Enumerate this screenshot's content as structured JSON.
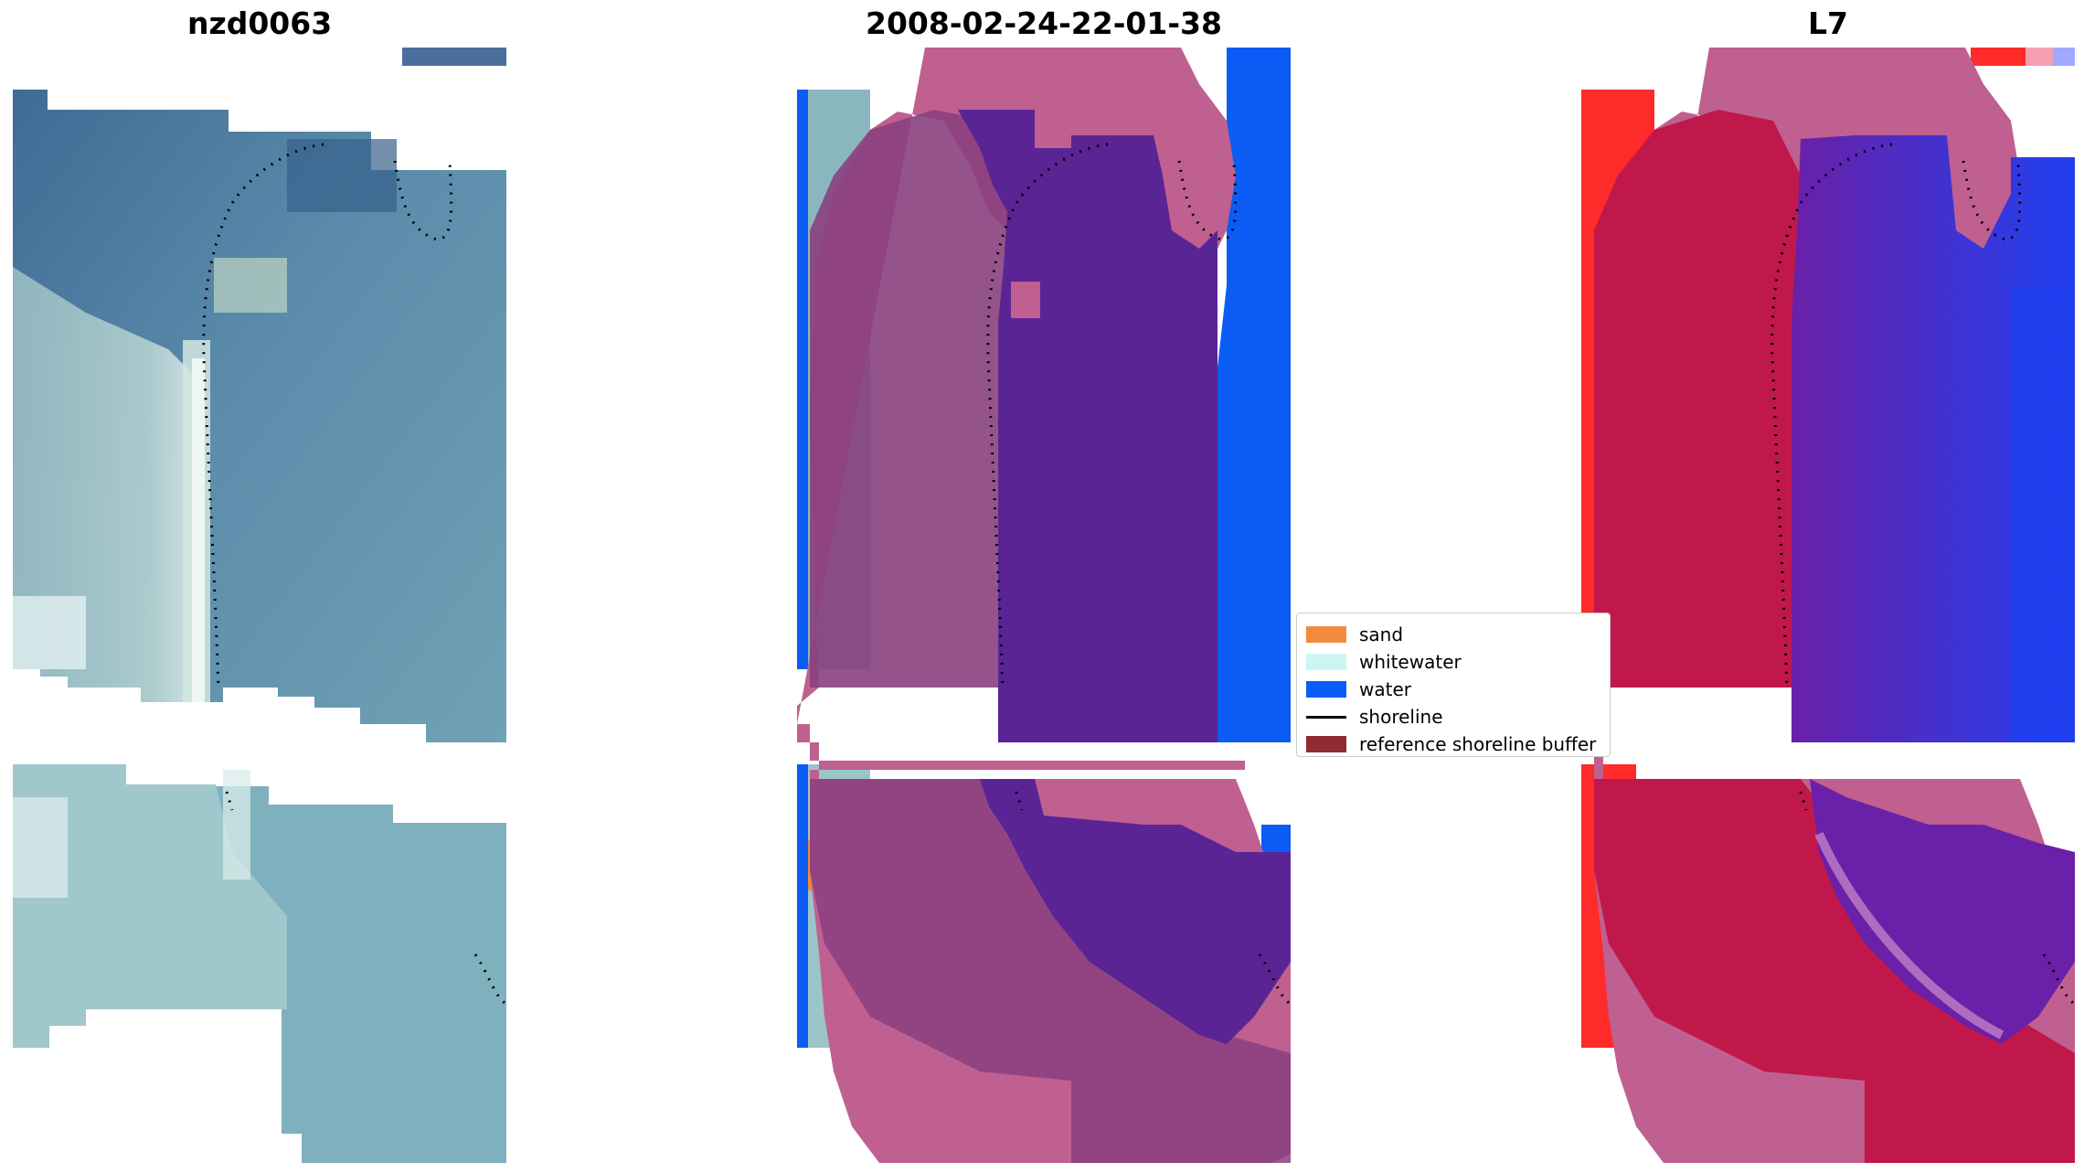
{
  "panels": [
    {
      "title": "nzd0063"
    },
    {
      "title": "2008-02-24-22-01-38"
    },
    {
      "title": "L7"
    }
  ],
  "legend": [
    {
      "label": "sand",
      "color": "#f28a3c",
      "kind": "patch"
    },
    {
      "label": "whitewater",
      "color": "#ccf5f5",
      "kind": "patch"
    },
    {
      "label": "water",
      "color": "#0a5cf5",
      "kind": "patch"
    },
    {
      "label": "shoreline",
      "color": "#000000",
      "kind": "line"
    },
    {
      "label": "reference shoreline buffer",
      "color": "#922a35",
      "kind": "patch"
    }
  ],
  "colors": {
    "rgb_water": "#6a9ab0",
    "rgb_dark_water": "#3f6a95",
    "rgb_sand": "#a8c8c8",
    "buffer_pink": "#bf6090",
    "classified_water": "#0a5cf5",
    "classified_land_purple": "#8a4080",
    "nir_red": "#ff2a2a",
    "nir_crimson": "#c0184a",
    "nir_blue": "#2040f0",
    "violet": "#5a2494"
  }
}
